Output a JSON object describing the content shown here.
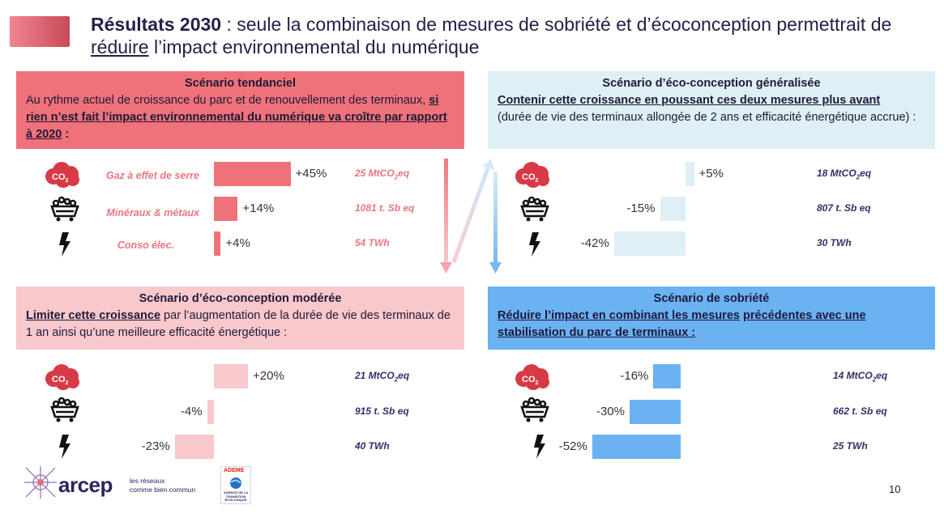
{
  "title": {
    "bold": "Résultats 2030",
    "text1": " : seule la combinaison de mesures de sobriété et d’écoconception permettrait de ",
    "underlined": "réduire",
    "text2": " l’impact environnemental du numérique"
  },
  "scenarios": {
    "tendanciel": {
      "header": "Scénario tendanciel",
      "text1": "Au rythme actuel de croissance du parc et de renouvellement des terminaux, ",
      "text_underlined": "si rien n’est fait l’impact environnemental du numérique va croître par rapport à 2020",
      "text2": " :",
      "indicators": [
        {
          "label": "Gaz à effet de serre",
          "pct": "+45%",
          "value": 45,
          "unit_val": "25 MtCO",
          "unit_sub": "2",
          "unit_end": "eq"
        },
        {
          "label": "Minéraux & métaux",
          "pct": "+14%",
          "value": 14,
          "unit_val": "1081 t. Sb eq"
        },
        {
          "label": "Conso élec.",
          "pct": "+4%",
          "value": 4,
          "unit_val": "54 TWh"
        }
      ]
    },
    "eco_generalisee": {
      "header": "Scénario d’éco-conception généralisée",
      "text_underlined": "Contenir cette croissance en poussant ces deux mesures plus avant",
      "text2": "(durée de vie des terminaux allongée de 2 ans et efficacité énergétique accrue) :",
      "indicators": [
        {
          "pct": "+5%",
          "value": 5,
          "unit_val": "18 MtCO",
          "unit_sub": "2",
          "unit_end": "eq"
        },
        {
          "pct": "-15%",
          "value": -15,
          "unit_val": "807 t. Sb eq"
        },
        {
          "pct": "-42%",
          "value": -42,
          "unit_val": "30 TWh"
        }
      ]
    },
    "eco_moderee": {
      "header": "Scénario d’éco-conception modérée",
      "text_underlined": "Limiter cette croissance",
      "text2": " par l’augmentation de la durée de vie des terminaux de 1 an ainsi qu’une meilleure efficacité énergétique :",
      "indicators": [
        {
          "pct": "+20%",
          "value": 20,
          "unit_val": "21 MtCO",
          "unit_sub": "2",
          "unit_end": "eq"
        },
        {
          "pct": "-4%",
          "value": -4,
          "unit_val": "915 t. Sb eq"
        },
        {
          "pct": "-23%",
          "value": -23,
          "unit_val": "40 TWh"
        }
      ]
    },
    "sobriete": {
      "header": "Scénario de sobriété",
      "text_underlined1": "Réduire l’impact en combinant les mesures",
      "text_mid": " ",
      "text_underlined2": "précédentes avec une stabilisation du parc de terminaux :",
      "indicators": [
        {
          "pct": "-16%",
          "value": -16,
          "unit_val": "14 MtCO",
          "unit_sub": "2",
          "unit_end": "eq"
        },
        {
          "pct": "-30%",
          "value": -30,
          "unit_val": "662 t. Sb eq"
        },
        {
          "pct": "-52%",
          "value": -52,
          "unit_val": "25 TWh"
        }
      ]
    }
  },
  "icons": {
    "co2": "CO",
    "co2_sub": "2",
    "mine": "mine-cart-icon",
    "elec": "lightning-icon"
  },
  "colors": {
    "tend": "#ef727a",
    "eco_gen": "#def0f6",
    "mod": "#f8c8cb",
    "sob": "#6bb2f2"
  },
  "footer": {
    "page": "10",
    "arcep": "arcep",
    "arcep_tag1": "les réseaux",
    "arcep_tag2": "comme bien commun",
    "ademe": "ADEME",
    "ademe_sub1": "AGENCE DE LA",
    "ademe_sub2": "TRANSITION",
    "ademe_sub3": "ÉCOLOGIQUE"
  }
}
